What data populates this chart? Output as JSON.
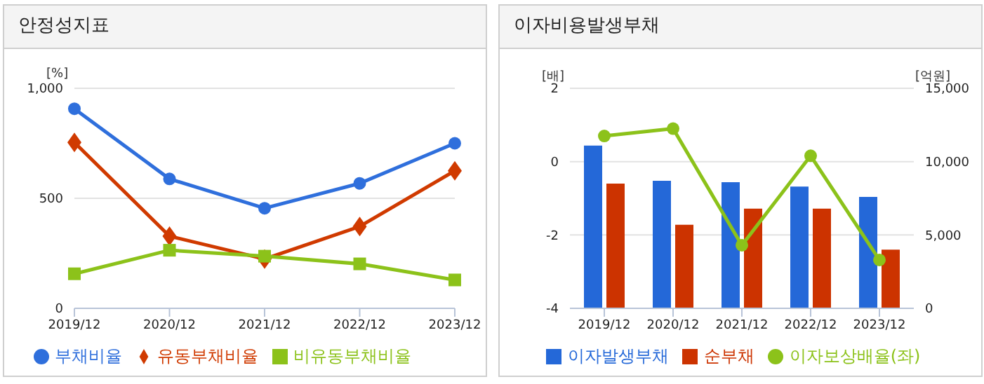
{
  "chart_data": [
    {
      "type": "line",
      "title": "안정성지표",
      "ylabel": "[%]",
      "categories": [
        "2019/12",
        "2020/12",
        "2021/12",
        "2022/12",
        "2023/12"
      ],
      "ylim": [
        0,
        1000
      ],
      "yticks": [
        0,
        500,
        {
          "value": 1000,
          "label": "1,000"
        }
      ],
      "grid": "y",
      "legend": "bottom",
      "line_style": "solid",
      "series": [
        {
          "name": "부채비율",
          "color": "#2f6fdc",
          "marker": "circle",
          "values": [
            907,
            588,
            455,
            568,
            750
          ]
        },
        {
          "name": "유동부채비율",
          "color": "#d03a00",
          "marker": "diamond",
          "values": [
            754,
            328,
            224,
            372,
            625
          ]
        },
        {
          "name": "비유동부채비율",
          "color": "#8cc21a",
          "marker": "square",
          "values": [
            157,
            264,
            237,
            202,
            129
          ]
        }
      ]
    },
    {
      "type": "bar",
      "title": "이자비용발생부채",
      "ylabel": "[배]",
      "y2label": "[억원]",
      "categories": [
        "2019/12",
        "2020/12",
        "2021/12",
        "2022/12",
        "2023/12"
      ],
      "ylim": [
        -4,
        2
      ],
      "yticks": [
        -4,
        -2,
        0,
        2
      ],
      "y2lim": [
        0,
        15000
      ],
      "y2ticks": [
        0,
        {
          "value": 5000,
          "label": "5,000"
        },
        {
          "value": 10000,
          "label": "10,000"
        },
        {
          "value": 15000,
          "label": "15,000"
        }
      ],
      "grid": "y",
      "legend": "bottom",
      "series": [
        {
          "name": "이자발생부채",
          "color": "#2468d8",
          "axis": "y2",
          "values": [
            11100,
            8700,
            8600,
            8300,
            7600
          ]
        },
        {
          "name": "순부채",
          "color": "#cc3300",
          "axis": "y2",
          "values": [
            8500,
            5700,
            6800,
            6800,
            4000
          ]
        },
        {
          "name": "이자보상배율(좌)",
          "type": "line",
          "color": "#8cc21a",
          "marker": "circle",
          "values": [
            0.7,
            0.9,
            -2.28,
            0.16,
            -2.68
          ]
        }
      ]
    }
  ]
}
